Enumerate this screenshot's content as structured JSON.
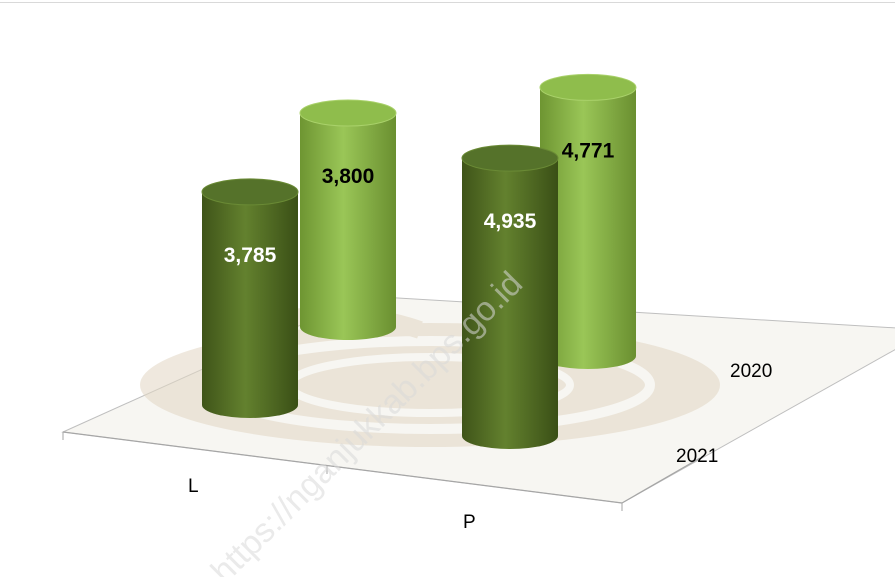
{
  "watermark": "https://nganjukkab.bps.go.id",
  "chart_data": {
    "type": "bar",
    "style": "3d-cylinder",
    "categories": [
      "L",
      "P"
    ],
    "series": [
      {
        "name": "2020",
        "values": [
          3800,
          4771
        ],
        "color": "#8db849",
        "value_labels": [
          "3,800",
          "4,771"
        ]
      },
      {
        "name": "2021",
        "values": [
          3785,
          4935
        ],
        "color": "#5c7a2a",
        "value_labels": [
          "3,785",
          "4,935"
        ]
      }
    ],
    "depth_labels": [
      "2020",
      "2021"
    ],
    "title": "",
    "xlabel": "",
    "ylabel": "",
    "grid": false,
    "legend": "none"
  }
}
